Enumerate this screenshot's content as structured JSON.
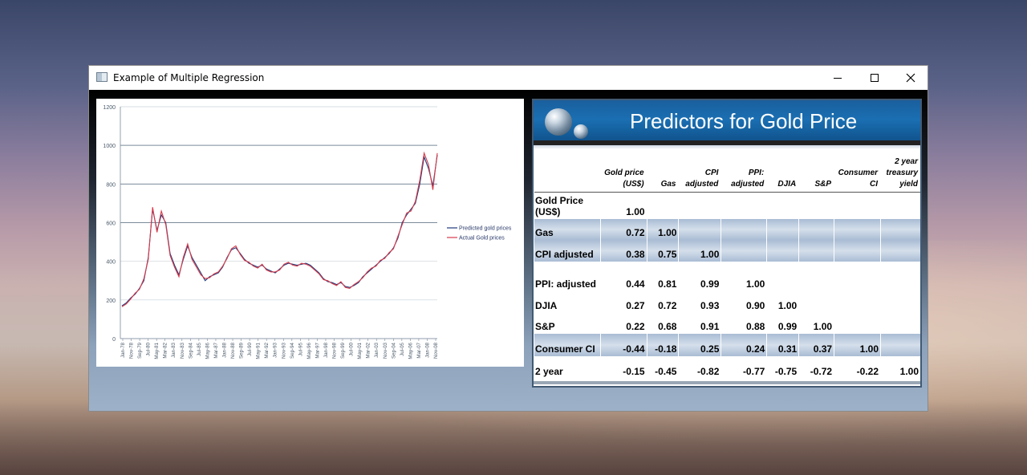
{
  "window": {
    "title": "Example of Multiple Regression"
  },
  "chart_data": {
    "type": "line",
    "title": "",
    "xlabel": "",
    "ylabel": "",
    "ylim": [
      0,
      1200
    ],
    "yticks": [
      0,
      200,
      400,
      600,
      800,
      1000,
      1200
    ],
    "grid": "horizontal",
    "legend_position": "right",
    "x_tick_labels": [
      "Jan-78",
      "Nov-78",
      "Sep-79",
      "Jul-80",
      "May-81",
      "Mar-82",
      "Jan-83",
      "Nov-83",
      "Sep-84",
      "Jul-85",
      "May-86",
      "Mar-87",
      "Jan-88",
      "Nov-88",
      "Sep-89",
      "Jul-90",
      "May-91",
      "Mar-92",
      "Jan-93",
      "Nov-93",
      "Sep-94",
      "Jul-95",
      "May-96",
      "Mar-97",
      "Jan-98",
      "Nov-98",
      "Sep-99",
      "Jul-00",
      "May-01",
      "Mar-02",
      "Jan-03",
      "Nov-03",
      "Sep-04",
      "Jul-05",
      "May-06",
      "Mar-07",
      "Jan-08",
      "Nov-08"
    ],
    "series": [
      {
        "name": "Predicted gold prices",
        "color": "#1f3a7a",
        "values": [
          170,
          185,
          210,
          230,
          260,
          300,
          420,
          670,
          560,
          640,
          600,
          440,
          380,
          330,
          410,
          480,
          420,
          380,
          340,
          300,
          320,
          330,
          340,
          370,
          420,
          460,
          470,
          440,
          410,
          390,
          380,
          370,
          380,
          360,
          350,
          340,
          360,
          380,
          390,
          385,
          380,
          385,
          390,
          380,
          360,
          340,
          310,
          295,
          290,
          280,
          290,
          270,
          265,
          275,
          290,
          320,
          340,
          360,
          380,
          400,
          420,
          440,
          470,
          520,
          600,
          640,
          670,
          700,
          800,
          940,
          880,
          790,
          950
        ]
      },
      {
        "name": "Actual Gold prices",
        "color": "#d83a4a",
        "values": [
          165,
          180,
          205,
          235,
          255,
          310,
          410,
          680,
          550,
          660,
          590,
          430,
          370,
          320,
          420,
          490,
          410,
          370,
          330,
          310,
          315,
          335,
          345,
          375,
          415,
          465,
          480,
          435,
          405,
          395,
          375,
          365,
          385,
          355,
          345,
          345,
          355,
          385,
          395,
          380,
          375,
          390,
          385,
          375,
          355,
          335,
          305,
          300,
          285,
          275,
          295,
          265,
          260,
          280,
          295,
          315,
          345,
          365,
          375,
          405,
          415,
          445,
          465,
          530,
          590,
          650,
          660,
          710,
          820,
          960,
          900,
          770,
          960
        ]
      }
    ]
  },
  "slide": {
    "title": "Predictors for Gold Price",
    "table": {
      "headers": [
        {
          "l1": "",
          "l2": "Gold price",
          "l3": "(US$)"
        },
        {
          "l1": "",
          "l2": "",
          "l3": "Gas"
        },
        {
          "l1": "",
          "l2": "CPI",
          "l3": "adjusted"
        },
        {
          "l1": "",
          "l2": "PPI:",
          "l3": "adjusted"
        },
        {
          "l1": "",
          "l2": "",
          "l3": "DJIA"
        },
        {
          "l1": "",
          "l2": "",
          "l3": "S&P"
        },
        {
          "l1": "",
          "l2": "Consumer",
          "l3": "CI"
        },
        {
          "l1": "2 year",
          "l2": "treasury",
          "l3": "yield"
        }
      ],
      "rows": [
        {
          "label1": "Gold Price",
          "label2": "(US$)",
          "shade": false,
          "values": [
            "1.00",
            "",
            "",
            "",
            "",
            "",
            "",
            ""
          ]
        },
        {
          "label1": "Gas",
          "label2": "",
          "shade": true,
          "values": [
            "0.72",
            "1.00",
            "",
            "",
            "",
            "",
            "",
            ""
          ]
        },
        {
          "label1": "CPI  adjusted",
          "label2": "",
          "shade": true,
          "values": [
            "0.38",
            "0.75",
            "1.00",
            "",
            "",
            "",
            "",
            ""
          ]
        },
        {
          "label1": "PPI: adjusted",
          "label2": "",
          "shade": false,
          "values": [
            "0.44",
            "0.81",
            "0.99",
            "1.00",
            "",
            "",
            "",
            ""
          ]
        },
        {
          "label1": "DJIA",
          "label2": "",
          "shade": false,
          "values": [
            "0.27",
            "0.72",
            "0.93",
            "0.90",
            "1.00",
            "",
            "",
            ""
          ]
        },
        {
          "label1": "S&P",
          "label2": "",
          "shade": false,
          "values": [
            "0.22",
            "0.68",
            "0.91",
            "0.88",
            "0.99",
            "1.00",
            "",
            ""
          ]
        },
        {
          "label1": "Consumer CI",
          "label2": "",
          "shade": true,
          "values": [
            "-0.44",
            "-0.18",
            "0.25",
            "0.24",
            "0.31",
            "0.37",
            "1.00",
            ""
          ]
        },
        {
          "label1": "2 year",
          "label2": "",
          "shade": false,
          "values": [
            "-0.15",
            "-0.45",
            "-0.82",
            "-0.77",
            "-0.75",
            "-0.72",
            "-0.22",
            "1.00"
          ]
        }
      ]
    }
  }
}
